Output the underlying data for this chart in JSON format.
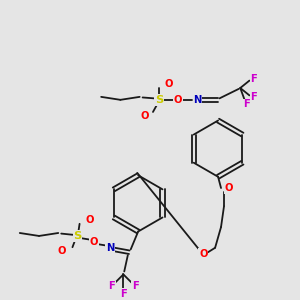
{
  "bg_color": "#e5e5e5",
  "bond_color": "#1a1a1a",
  "colors": {
    "O": "#ff0000",
    "N": "#0000bb",
    "S": "#cccc00",
    "F": "#cc00cc",
    "C": "#1a1a1a"
  },
  "font_size": 7.2,
  "lw": 1.3
}
